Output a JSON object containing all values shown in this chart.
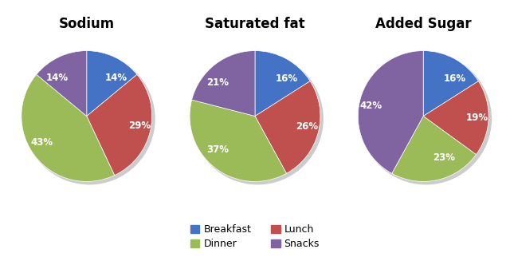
{
  "charts": [
    {
      "title": "Sodium",
      "values": [
        14,
        29,
        43,
        14
      ],
      "labels": [
        "14%",
        "29%",
        "43%",
        "14%"
      ],
      "startangle": 90
    },
    {
      "title": "Saturated fat",
      "values": [
        16,
        26,
        37,
        21
      ],
      "labels": [
        "16%",
        "26%",
        "37%",
        "21%"
      ],
      "startangle": 90
    },
    {
      "title": "Added Sugar",
      "values": [
        16,
        19,
        23,
        42
      ],
      "labels": [
        "16%",
        "19%",
        "23%",
        "42%"
      ],
      "startangle": 90
    }
  ],
  "colors": [
    "#4472C4",
    "#C0504D",
    "#9BBB59",
    "#8064A2"
  ],
  "legend_labels": [
    "Breakfast",
    "Lunch",
    "Dinner",
    "Snacks"
  ],
  "text_color": "#FFFFFF",
  "label_fontsize": 8.5,
  "title_fontsize": 12,
  "shadow_color": "#CCCCCC"
}
